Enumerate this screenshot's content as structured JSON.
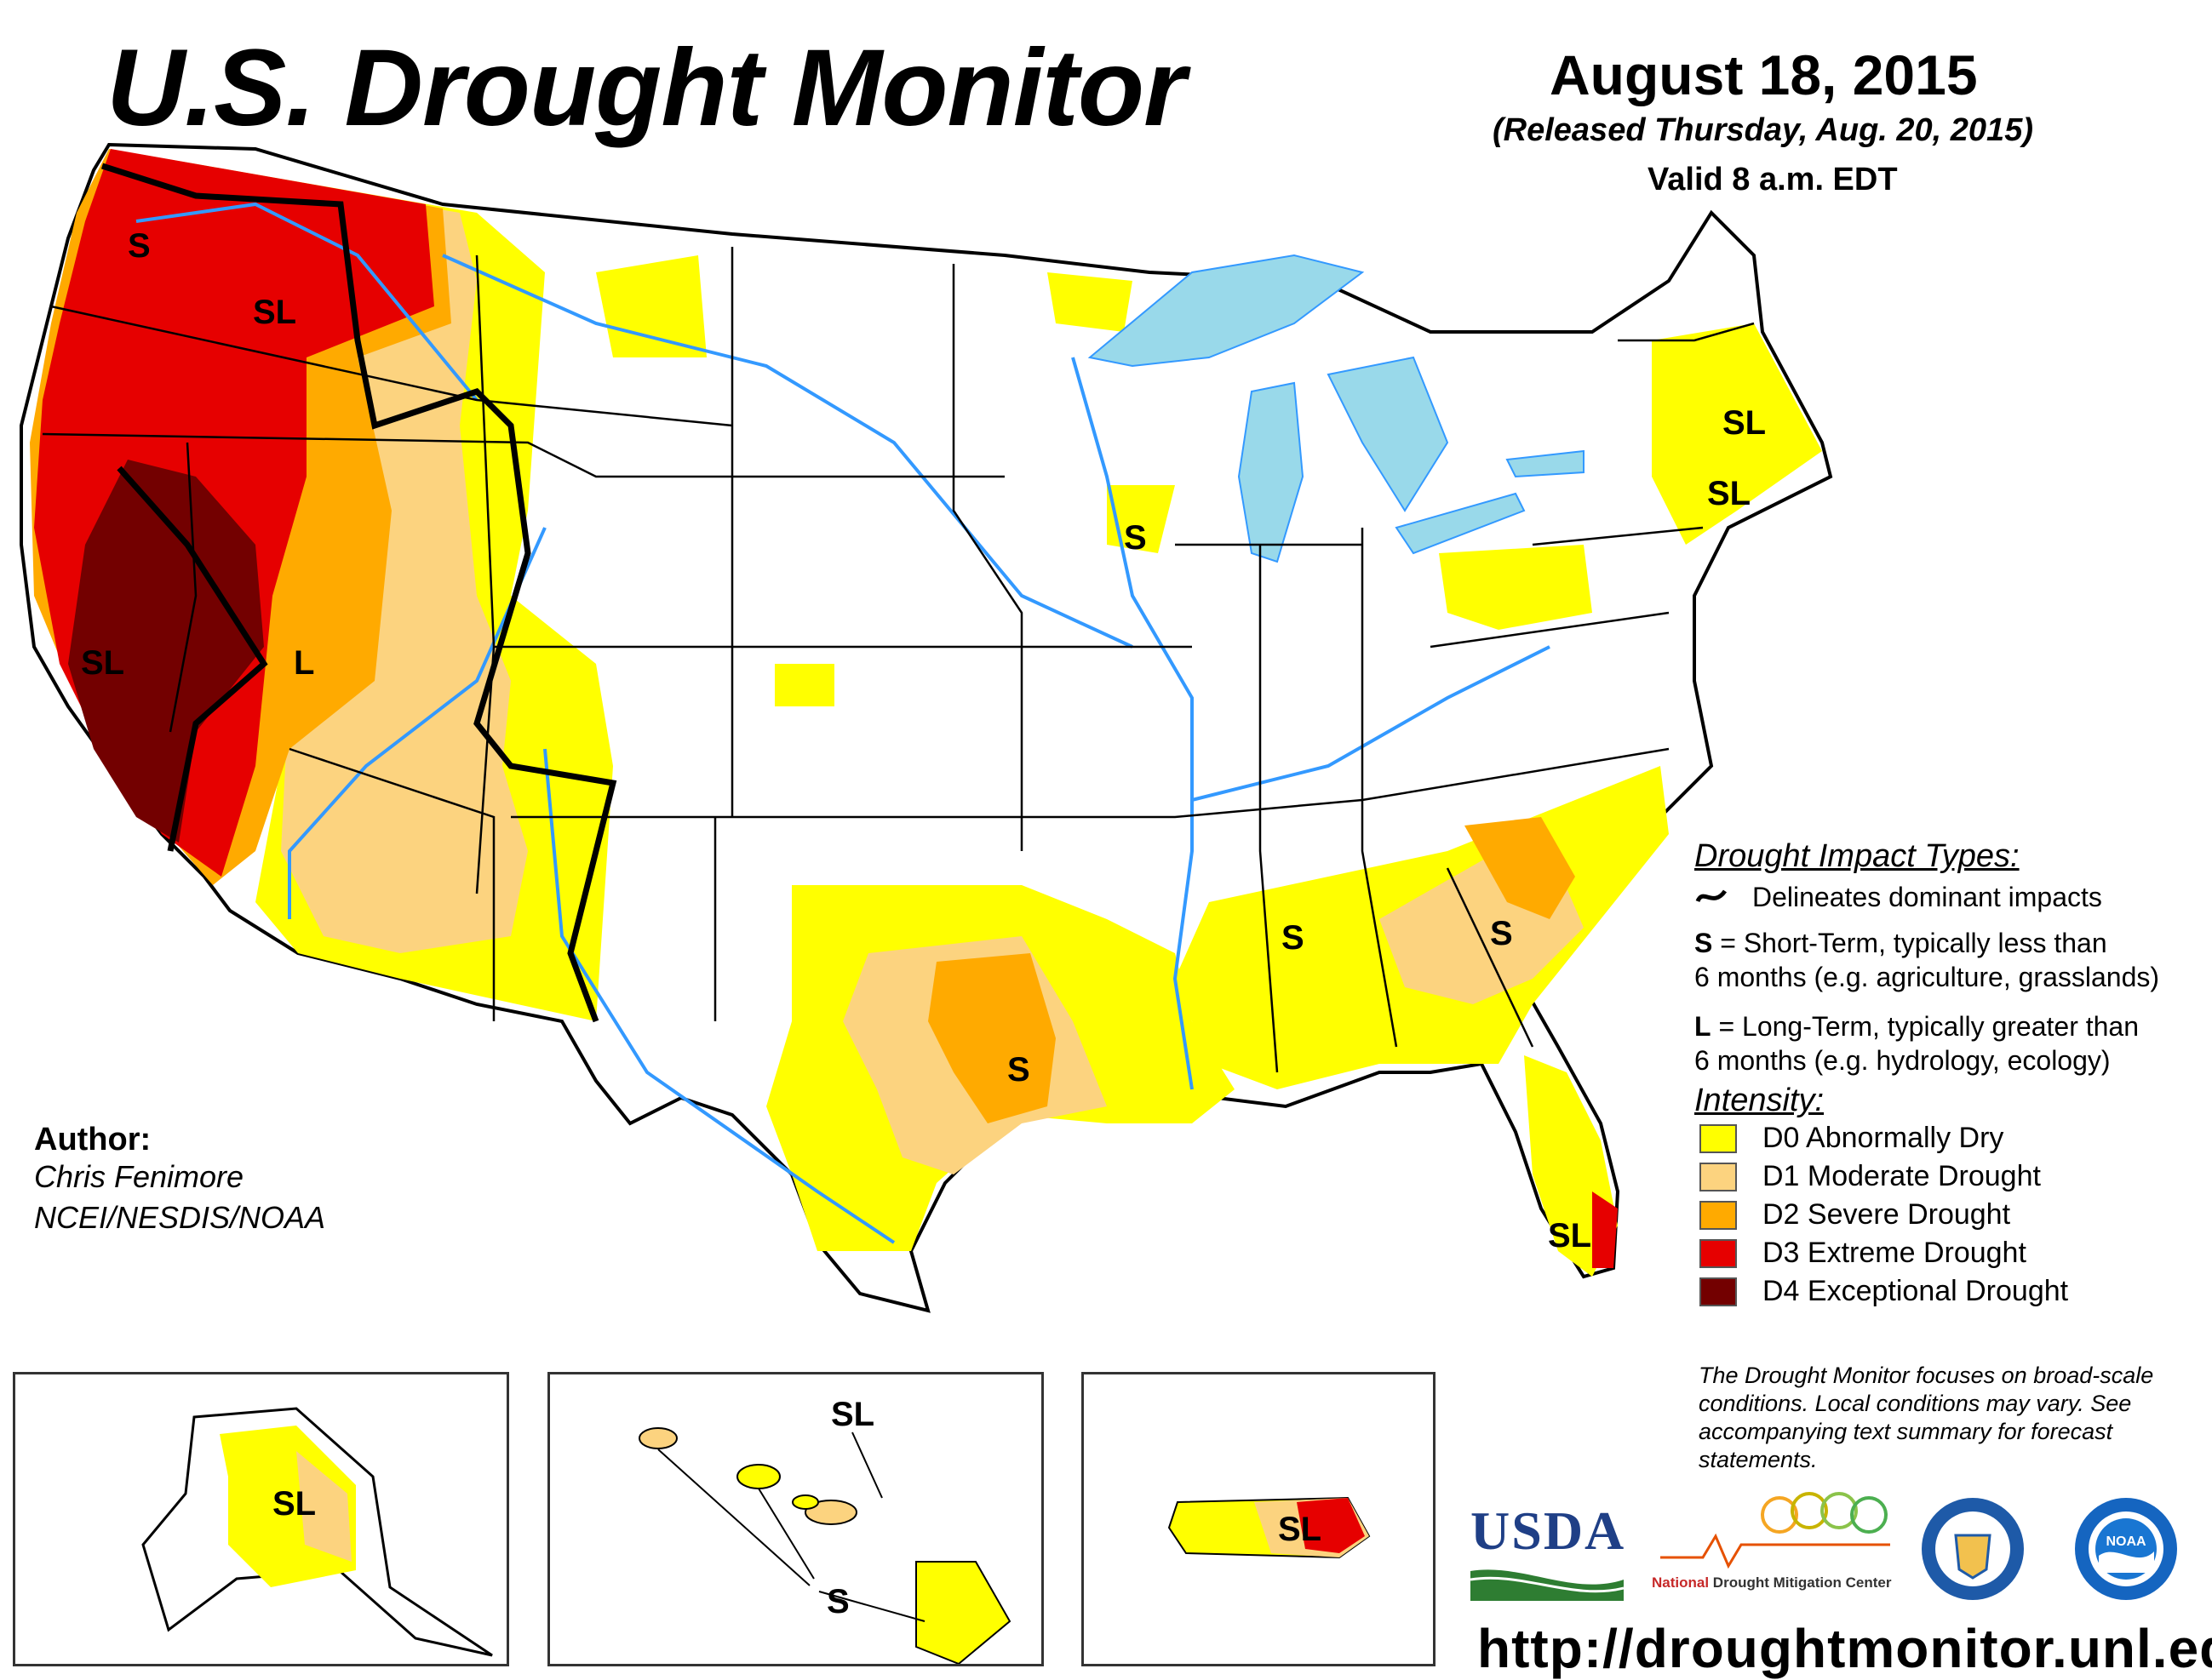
{
  "title": "U.S. Drought Monitor",
  "date": "August 18, 2015",
  "released": "(Released Thursday, Aug. 20, 2015)",
  "valid": "Valid 8 a.m. EDT",
  "author": {
    "heading": "Author:",
    "name": "Chris Fenimore",
    "org": "NCEI/NESDIS/NOAA"
  },
  "impact_types": {
    "heading": "Drought Impact Types:",
    "delineates": "Delineates dominant impacts",
    "short_key": "S",
    "short_text1": " = Short-Term, typically less than",
    "short_text2": "6 months (e.g. agriculture, grasslands)",
    "long_key": "L",
    "long_text1": " = Long-Term, typically greater than",
    "long_text2": "6 months (e.g. hydrology, ecology)"
  },
  "intensity": {
    "heading": "Intensity:",
    "levels": [
      {
        "label": "D0 Abnormally Dry",
        "color": "#ffff00"
      },
      {
        "label": "D1 Moderate Drought",
        "color": "#fcd37f"
      },
      {
        "label": "D2 Severe Drought",
        "color": "#ffaa00"
      },
      {
        "label": "D3 Extreme Drought",
        "color": "#e60000"
      },
      {
        "label": "D4 Exceptional Drought",
        "color": "#730000"
      }
    ]
  },
  "note": "The Drought Monitor focuses on broad-scale conditions. Local conditions may vary. See accompanying text summary for forecast statements.",
  "url": "http://droughtmonitor.unl.edu/",
  "map_labels": {
    "wa_s": "S",
    "wa_sl": "SL",
    "ca_sl": "SL",
    "nv_l": "L",
    "ia_s": "S",
    "tx_s": "S",
    "ms_s": "S",
    "sc_s": "S",
    "vt_sl": "SL",
    "ma_sl": "SL",
    "fl_sl": "SL",
    "ak_sl": "SL",
    "hi_sl": "SL",
    "hi_s": "S",
    "pr_sl": "SL"
  },
  "logos": {
    "usda": "USDA",
    "ndmc_a": "National",
    "ndmc_b": "Drought Mitigation Center",
    "noaa": "NOAA"
  },
  "colors": {
    "water": "#99d9ea",
    "river": "#3399ff",
    "border": "#000000"
  }
}
